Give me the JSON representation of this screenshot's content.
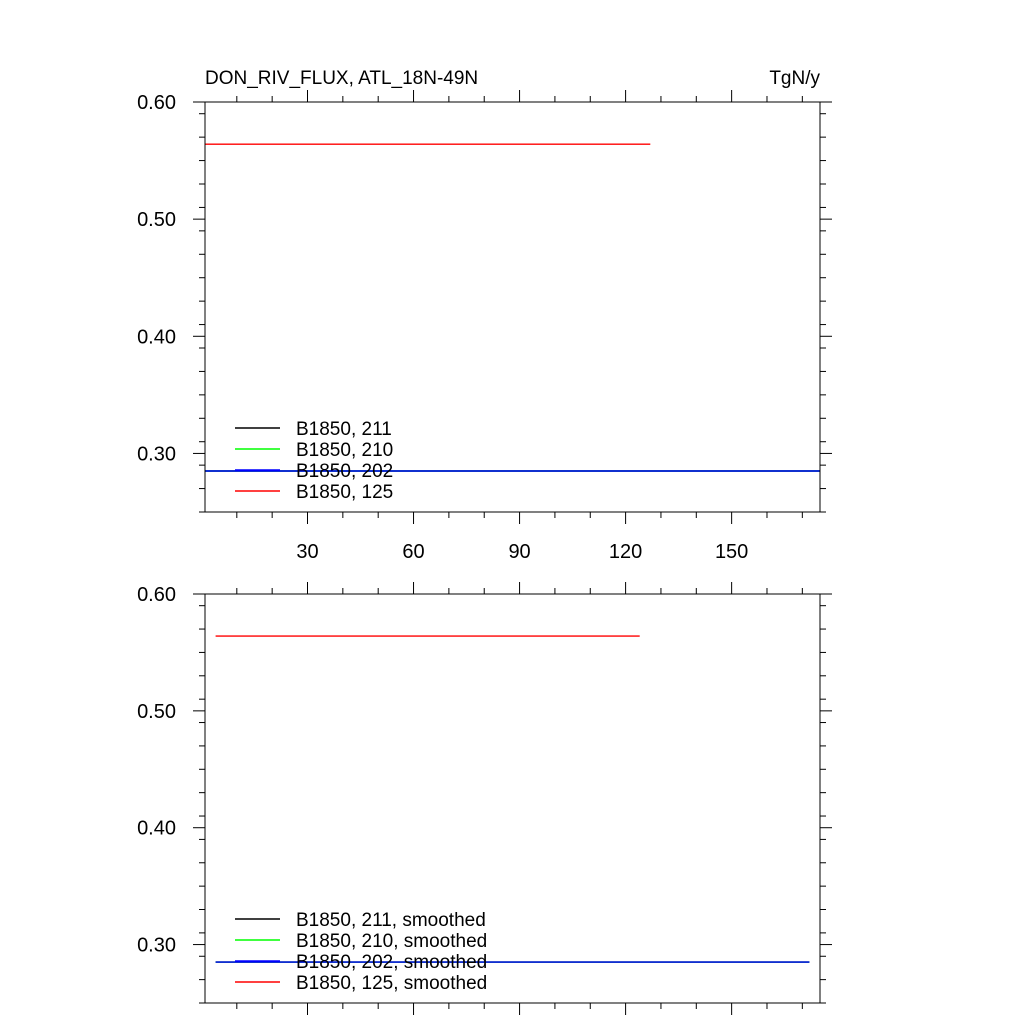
{
  "chart_data": [
    {
      "type": "line",
      "title": "DON_RIV_FLUX, ATL_18N-49N",
      "units": "TgN/y",
      "xlim": [
        1,
        175
      ],
      "ylim": [
        0.25,
        0.6
      ],
      "y_tick_labels": [
        "0.60",
        "0.50",
        "0.40",
        "0.30"
      ],
      "x_tick_labels": [
        "30",
        "60",
        "90",
        "120",
        "150"
      ],
      "x_ticks": [
        30,
        60,
        90,
        120,
        150
      ],
      "y_ticks": [
        0.6,
        0.5,
        0.4,
        0.3
      ],
      "legend_position": "bottom-left",
      "series": [
        {
          "name": "B1850, 211",
          "color": "#000000",
          "x": [
            1,
            175
          ],
          "y": [
            0.285,
            0.285
          ]
        },
        {
          "name": "B1850, 210",
          "color": "#00ff00",
          "x": [
            1,
            175
          ],
          "y": [
            0.285,
            0.285
          ]
        },
        {
          "name": "B1850, 202",
          "color": "#0000ff",
          "x": [
            1,
            175
          ],
          "y": [
            0.285,
            0.285
          ]
        },
        {
          "name": "B1850, 125",
          "color": "#ff0000",
          "x": [
            1,
            127
          ],
          "y": [
            0.564,
            0.564
          ]
        }
      ]
    },
    {
      "type": "line",
      "title": "",
      "xlim": [
        1,
        175
      ],
      "ylim": [
        0.25,
        0.6
      ],
      "y_tick_labels": [
        "0.60",
        "0.50",
        "0.40",
        "0.30"
      ],
      "x_tick_labels": [],
      "x_ticks": [
        30,
        60,
        90,
        120,
        150
      ],
      "y_ticks": [
        0.6,
        0.5,
        0.4,
        0.3
      ],
      "legend_position": "bottom-left",
      "series": [
        {
          "name": "B1850, 211, smoothed",
          "color": "#000000",
          "x": [
            4,
            172
          ],
          "y": [
            0.285,
            0.285
          ]
        },
        {
          "name": "B1850, 210, smoothed",
          "color": "#00ff00",
          "x": [
            4,
            172
          ],
          "y": [
            0.285,
            0.285
          ]
        },
        {
          "name": "B1850, 202, smoothed",
          "color": "#0000ff",
          "x": [
            4,
            172
          ],
          "y": [
            0.285,
            0.285
          ]
        },
        {
          "name": "B1850, 125, smoothed",
          "color": "#ff0000",
          "x": [
            4,
            124
          ],
          "y": [
            0.564,
            0.564
          ]
        }
      ]
    }
  ]
}
